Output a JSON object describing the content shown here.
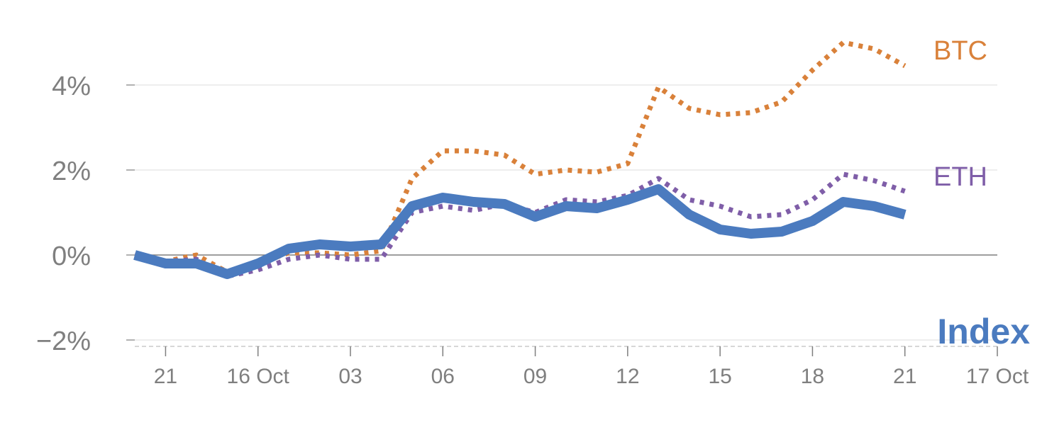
{
  "chart_data": {
    "type": "line",
    "title": "",
    "xlabel": "",
    "ylabel": "",
    "ylim": [
      -2.1,
      5.4
    ],
    "yticks": [
      -2,
      0,
      2,
      4
    ],
    "ytick_labels": [
      "−2%",
      "0%",
      "2%",
      "4%"
    ],
    "x_tick_labels": [
      "21",
      "16 Oct",
      "03",
      "06",
      "09",
      "12",
      "15",
      "18",
      "21",
      "17 Oct"
    ],
    "x_tick_index": [
      1,
      4,
      7,
      10,
      13,
      16,
      19,
      22,
      25,
      28
    ],
    "x_index_range": [
      0,
      28
    ],
    "series": [
      {
        "name": "BTC",
        "label": "BTC",
        "color": "#d9813a",
        "style": "dotted",
        "values": [
          0.0,
          -0.15,
          0.0,
          -0.4,
          -0.2,
          0.05,
          0.05,
          0.0,
          0.1,
          1.8,
          2.45,
          2.45,
          2.35,
          1.9,
          2.0,
          1.95,
          2.15,
          3.95,
          3.45,
          3.3,
          3.35,
          3.6,
          4.35,
          5.0,
          4.85,
          4.45
        ]
      },
      {
        "name": "ETH",
        "label": "ETH",
        "color": "#7f5ea8",
        "style": "dotted",
        "values": [
          0.0,
          -0.15,
          -0.1,
          -0.5,
          -0.35,
          -0.1,
          0.0,
          -0.1,
          -0.1,
          1.0,
          1.15,
          1.05,
          1.2,
          1.0,
          1.3,
          1.25,
          1.4,
          1.8,
          1.3,
          1.15,
          0.9,
          0.95,
          1.3,
          1.9,
          1.75,
          1.5
        ]
      },
      {
        "name": "Index",
        "label": "Index",
        "color": "#4b7bbf",
        "style": "solid",
        "values": [
          0.0,
          -0.2,
          -0.2,
          -0.45,
          -0.2,
          0.15,
          0.25,
          0.2,
          0.25,
          1.15,
          1.35,
          1.25,
          1.2,
          0.9,
          1.15,
          1.1,
          1.3,
          1.55,
          0.95,
          0.6,
          0.5,
          0.55,
          0.8,
          1.25,
          1.15,
          0.95
        ]
      }
    ],
    "grid": true,
    "legend": "inline-right"
  }
}
